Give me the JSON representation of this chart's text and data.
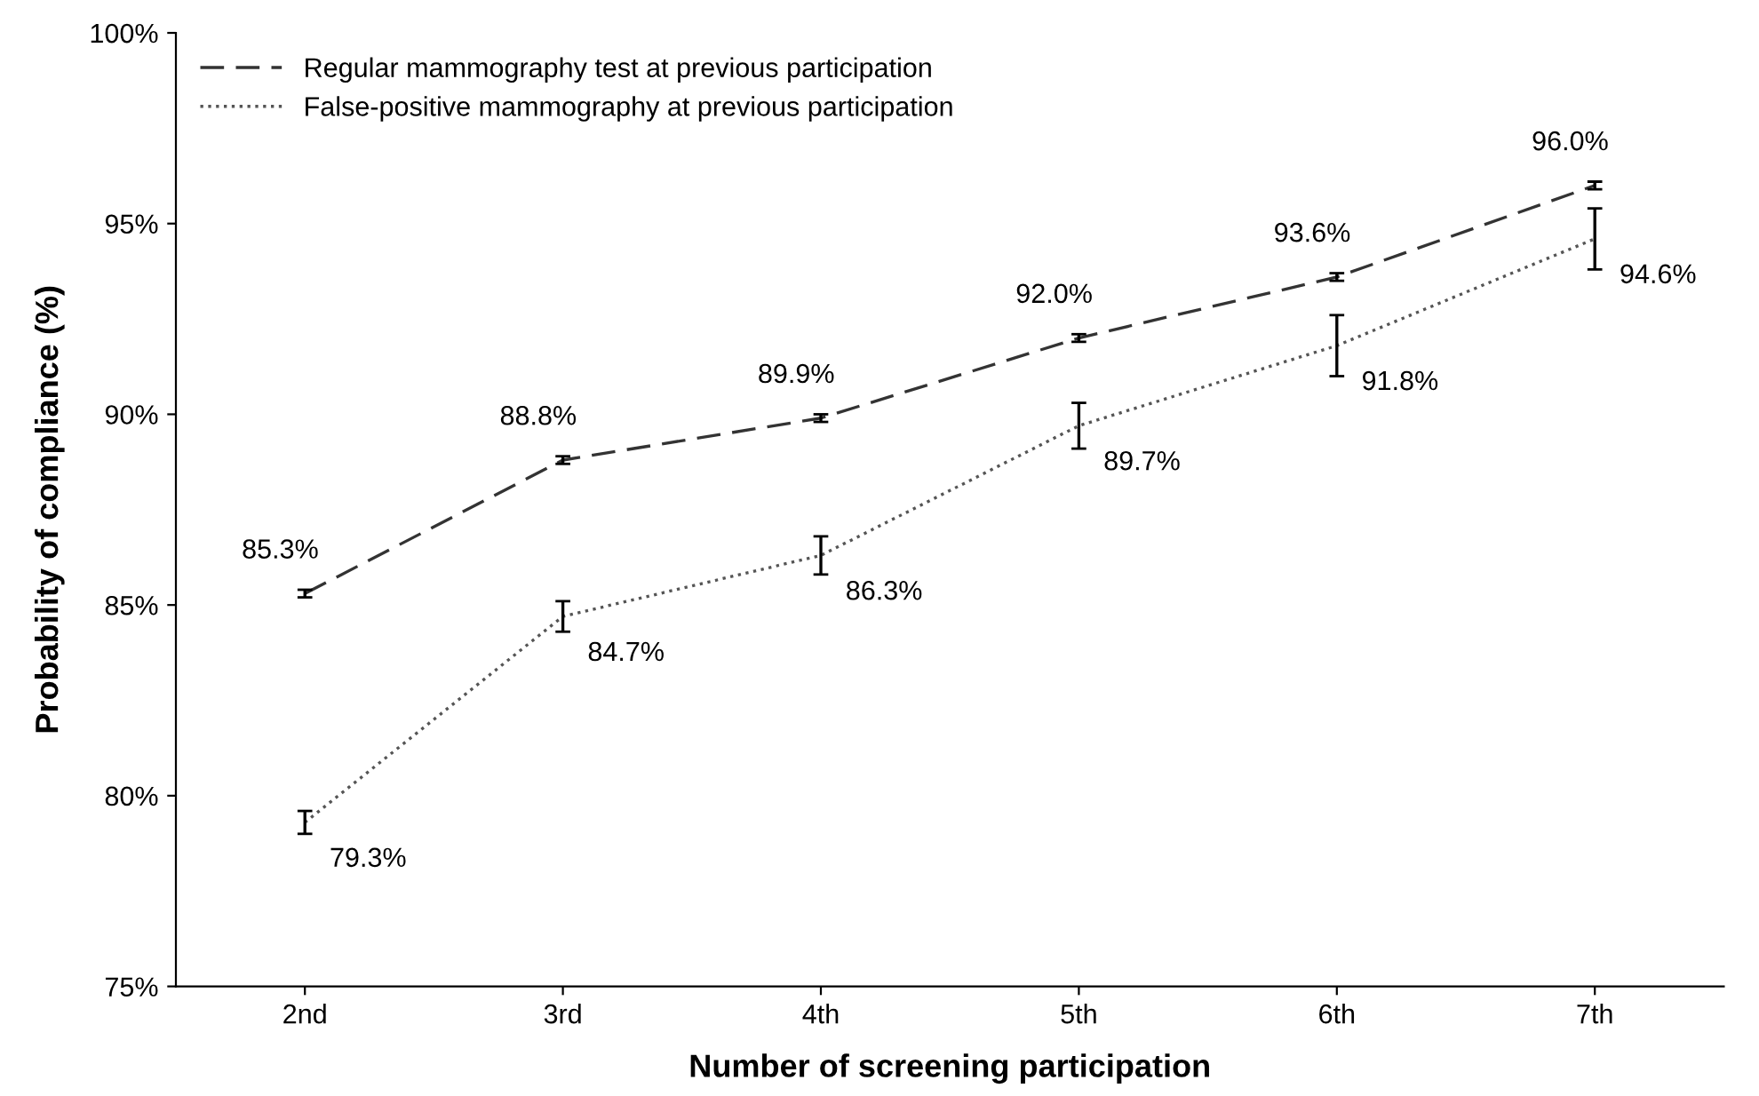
{
  "chart_data": {
    "type": "line",
    "xlabel": "Number of screening participation",
    "ylabel": "Probability of compliance (%)",
    "categories": [
      "2nd",
      "3rd",
      "4th",
      "5th",
      "6th",
      "7th"
    ],
    "series": [
      {
        "name": "Regular mammography test at previous participation",
        "color": "#333333",
        "line_style": "dashed",
        "values": [
          85.3,
          88.8,
          89.9,
          92.0,
          93.6,
          96.0
        ],
        "errors": [
          0.1,
          0.1,
          0.1,
          0.1,
          0.1,
          0.1
        ],
        "value_labels": [
          "85.3%",
          "88.8%",
          "89.9%",
          "92.0%",
          "93.6%",
          "96.0%"
        ]
      },
      {
        "name": "False-positive mammography at previous participation",
        "color": "#555555",
        "line_style": "dotted",
        "values": [
          79.3,
          84.7,
          86.3,
          89.7,
          91.8,
          94.6
        ],
        "errors": [
          0.3,
          0.4,
          0.5,
          0.6,
          0.8,
          0.8
        ],
        "value_labels": [
          "79.3%",
          "84.7%",
          "86.3%",
          "89.7%",
          "91.8%",
          "94.6%"
        ]
      }
    ],
    "ylim": [
      75,
      100
    ],
    "yticks": [
      {
        "value": 75,
        "label": "75%"
      },
      {
        "value": 80,
        "label": "80%"
      },
      {
        "value": 85,
        "label": "85%"
      },
      {
        "value": 90,
        "label": "90%"
      },
      {
        "value": 95,
        "label": "95%"
      },
      {
        "value": 100,
        "label": "100%"
      }
    ],
    "legend": "top left",
    "grid": false,
    "marker": "none"
  }
}
